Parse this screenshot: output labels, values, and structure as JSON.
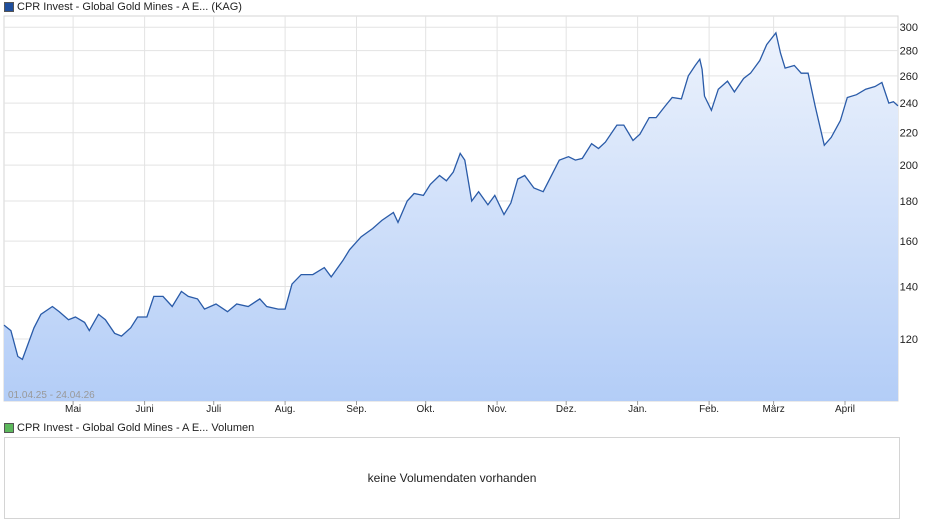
{
  "price_legend": {
    "label": "CPR Invest - Global Gold Mines - A E... (KAG)",
    "color": "#1f4e9c"
  },
  "volume_legend": {
    "label": "CPR Invest - Global Gold Mines - A E... Volumen",
    "color": "#5cb85c"
  },
  "date_range": "01.04.25 - 24.04.26",
  "volume_message": "keine Volumendaten vorhanden",
  "colors": {
    "line": "#2a5ba8",
    "fill_top": "#ecf2fc",
    "fill_bottom": "#b3cdf7",
    "grid": "#e3e3e3"
  },
  "chart_data": {
    "type": "area",
    "scale": "log",
    "ylim": [
      100,
      310
    ],
    "yticks": [
      120,
      140,
      160,
      180,
      200,
      220,
      240,
      260,
      280,
      300
    ],
    "xticks": [
      {
        "label": "Mai",
        "date": "2025-05-01"
      },
      {
        "label": "Juni",
        "date": "2025-06-01"
      },
      {
        "label": "Juli",
        "date": "2025-07-01"
      },
      {
        "label": "Aug.",
        "date": "2025-08-01"
      },
      {
        "label": "Sep.",
        "date": "2025-09-01"
      },
      {
        "label": "Okt.",
        "date": "2025-10-01"
      },
      {
        "label": "Nov.",
        "date": "2025-11-01"
      },
      {
        "label": "Dez.",
        "date": "2025-12-01"
      },
      {
        "label": "Jan.",
        "date": "2026-01-01"
      },
      {
        "label": "Feb.",
        "date": "2026-02-01"
      },
      {
        "label": "März",
        "date": "2026-03-01"
      },
      {
        "label": "April",
        "date": "2026-04-01"
      }
    ],
    "xlim": [
      "2025-04-01",
      "2026-04-24"
    ],
    "grid": true,
    "series": [
      {
        "name": "CPR Invest - Global Gold Mines - A E... (KAG)",
        "points": [
          [
            "2025-04-01",
            125
          ],
          [
            "2025-04-04",
            123
          ],
          [
            "2025-04-07",
            114
          ],
          [
            "2025-04-09",
            113
          ],
          [
            "2025-04-14",
            124
          ],
          [
            "2025-04-17",
            129
          ],
          [
            "2025-04-22",
            132
          ],
          [
            "2025-04-25",
            130
          ],
          [
            "2025-04-29",
            127
          ],
          [
            "2025-05-02",
            128
          ],
          [
            "2025-05-06",
            126
          ],
          [
            "2025-05-08",
            123
          ],
          [
            "2025-05-12",
            129
          ],
          [
            "2025-05-15",
            127
          ],
          [
            "2025-05-19",
            122
          ],
          [
            "2025-05-22",
            121
          ],
          [
            "2025-05-26",
            124
          ],
          [
            "2025-05-29",
            128
          ],
          [
            "2025-06-02",
            128
          ],
          [
            "2025-06-05",
            136
          ],
          [
            "2025-06-09",
            136
          ],
          [
            "2025-06-13",
            132
          ],
          [
            "2025-06-17",
            138
          ],
          [
            "2025-06-20",
            136
          ],
          [
            "2025-06-24",
            135
          ],
          [
            "2025-06-27",
            131
          ],
          [
            "2025-07-02",
            133
          ],
          [
            "2025-07-07",
            130
          ],
          [
            "2025-07-11",
            133
          ],
          [
            "2025-07-16",
            132
          ],
          [
            "2025-07-21",
            135
          ],
          [
            "2025-07-24",
            132
          ],
          [
            "2025-07-29",
            131
          ],
          [
            "2025-08-01",
            131
          ],
          [
            "2025-08-04",
            141
          ],
          [
            "2025-08-08",
            145
          ],
          [
            "2025-08-13",
            145
          ],
          [
            "2025-08-18",
            148
          ],
          [
            "2025-08-21",
            144
          ],
          [
            "2025-08-26",
            151
          ],
          [
            "2025-08-29",
            156
          ],
          [
            "2025-09-03",
            162
          ],
          [
            "2025-09-08",
            166
          ],
          [
            "2025-09-12",
            170
          ],
          [
            "2025-09-17",
            174
          ],
          [
            "2025-09-19",
            169
          ],
          [
            "2025-09-23",
            180
          ],
          [
            "2025-09-26",
            184
          ],
          [
            "2025-09-30",
            183
          ],
          [
            "2025-10-03",
            189
          ],
          [
            "2025-10-07",
            194
          ],
          [
            "2025-10-10",
            191
          ],
          [
            "2025-10-13",
            196
          ],
          [
            "2025-10-16",
            207
          ],
          [
            "2025-10-18",
            203
          ],
          [
            "2025-10-21",
            180
          ],
          [
            "2025-10-24",
            185
          ],
          [
            "2025-10-28",
            178
          ],
          [
            "2025-10-31",
            183
          ],
          [
            "2025-11-04",
            173
          ],
          [
            "2025-11-07",
            179
          ],
          [
            "2025-11-10",
            192
          ],
          [
            "2025-11-13",
            194
          ],
          [
            "2025-11-17",
            187
          ],
          [
            "2025-11-21",
            185
          ],
          [
            "2025-11-25",
            195
          ],
          [
            "2025-11-28",
            203
          ],
          [
            "2025-12-02",
            205
          ],
          [
            "2025-12-05",
            203
          ],
          [
            "2025-12-08",
            204
          ],
          [
            "2025-12-12",
            213
          ],
          [
            "2025-12-15",
            210
          ],
          [
            "2025-12-18",
            214
          ],
          [
            "2025-12-23",
            225
          ],
          [
            "2025-12-26",
            225
          ],
          [
            "2025-12-30",
            215
          ],
          [
            "2026-01-02",
            219
          ],
          [
            "2026-01-06",
            230
          ],
          [
            "2026-01-09",
            230
          ],
          [
            "2026-01-13",
            238
          ],
          [
            "2026-01-16",
            244
          ],
          [
            "2026-01-20",
            243
          ],
          [
            "2026-01-23",
            260
          ],
          [
            "2026-01-26",
            268
          ],
          [
            "2026-01-28",
            273
          ],
          [
            "2026-01-29",
            265
          ],
          [
            "2026-01-30",
            245
          ],
          [
            "2026-02-02",
            235
          ],
          [
            "2026-02-05",
            250
          ],
          [
            "2026-02-09",
            256
          ],
          [
            "2026-02-12",
            248
          ],
          [
            "2026-02-16",
            258
          ],
          [
            "2026-02-19",
            262
          ],
          [
            "2026-02-23",
            272
          ],
          [
            "2026-02-26",
            285
          ],
          [
            "2026-03-02",
            295
          ],
          [
            "2026-03-04",
            278
          ],
          [
            "2026-03-06",
            266
          ],
          [
            "2026-03-10",
            268
          ],
          [
            "2026-03-13",
            262
          ],
          [
            "2026-03-16",
            262
          ],
          [
            "2026-03-19",
            238
          ],
          [
            "2026-03-23",
            212
          ],
          [
            "2026-03-26",
            217
          ],
          [
            "2026-03-30",
            228
          ],
          [
            "2026-04-02",
            244
          ],
          [
            "2026-04-06",
            246
          ],
          [
            "2026-04-10",
            250
          ],
          [
            "2026-04-14",
            252
          ],
          [
            "2026-04-17",
            255
          ],
          [
            "2026-04-20",
            240
          ],
          [
            "2026-04-22",
            241
          ],
          [
            "2026-04-24",
            238
          ]
        ]
      }
    ]
  }
}
